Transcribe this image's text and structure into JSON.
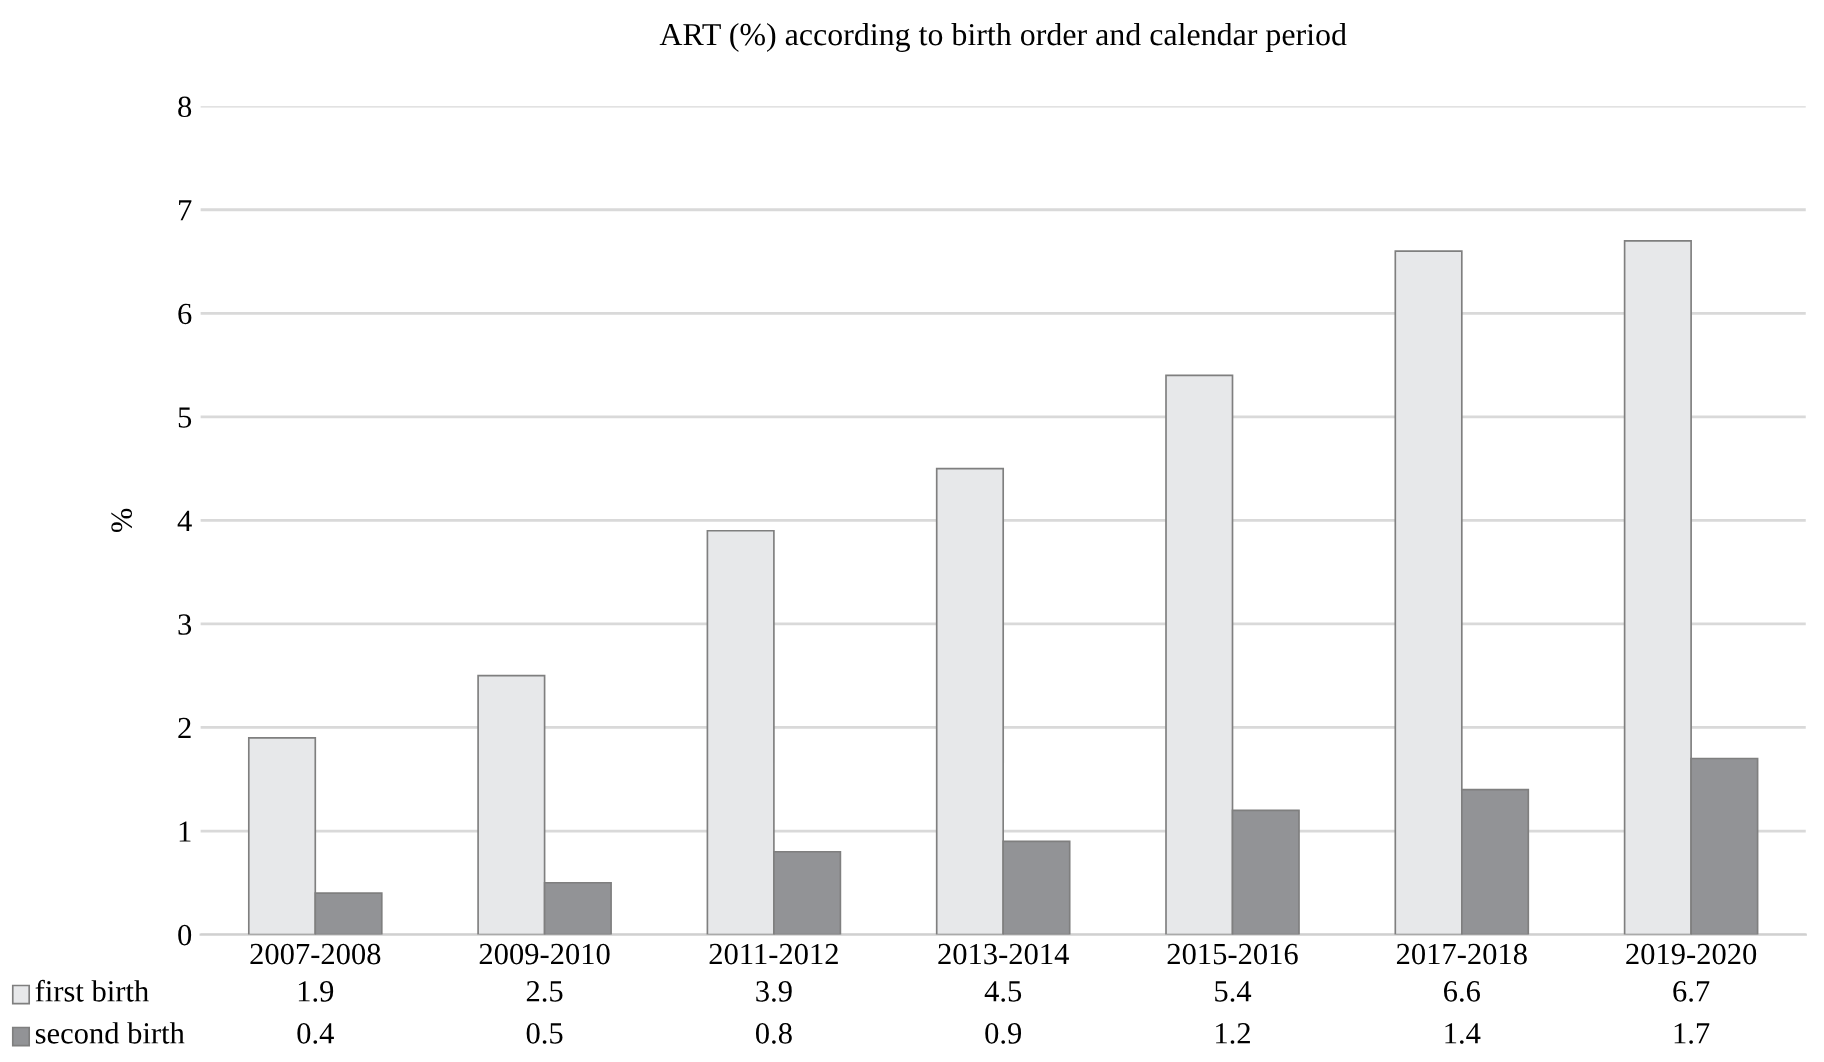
{
  "chart_data": {
    "type": "bar",
    "title": "ART (%) according to birth order and calendar period",
    "ylabel": "%",
    "categories": [
      "2007-2008",
      "2009-2010",
      "2011-2012",
      "2013-2014",
      "2015-2016",
      "2017-2018",
      "2019-2020"
    ],
    "series": [
      {
        "name": "first birth",
        "color": "#e7e8ea",
        "values": [
          1.9,
          2.5,
          3.9,
          4.5,
          5.4,
          6.6,
          6.7
        ]
      },
      {
        "name": "second birth",
        "color": "#929396",
        "values": [
          0.4,
          0.5,
          0.8,
          0.9,
          1.2,
          1.4,
          1.7
        ]
      }
    ],
    "ylim": [
      0,
      8
    ],
    "yticks": [
      0,
      1,
      2,
      3,
      4,
      5,
      6,
      7,
      8
    ],
    "grid": "y",
    "legend": "bottom",
    "data_labels": true
  }
}
